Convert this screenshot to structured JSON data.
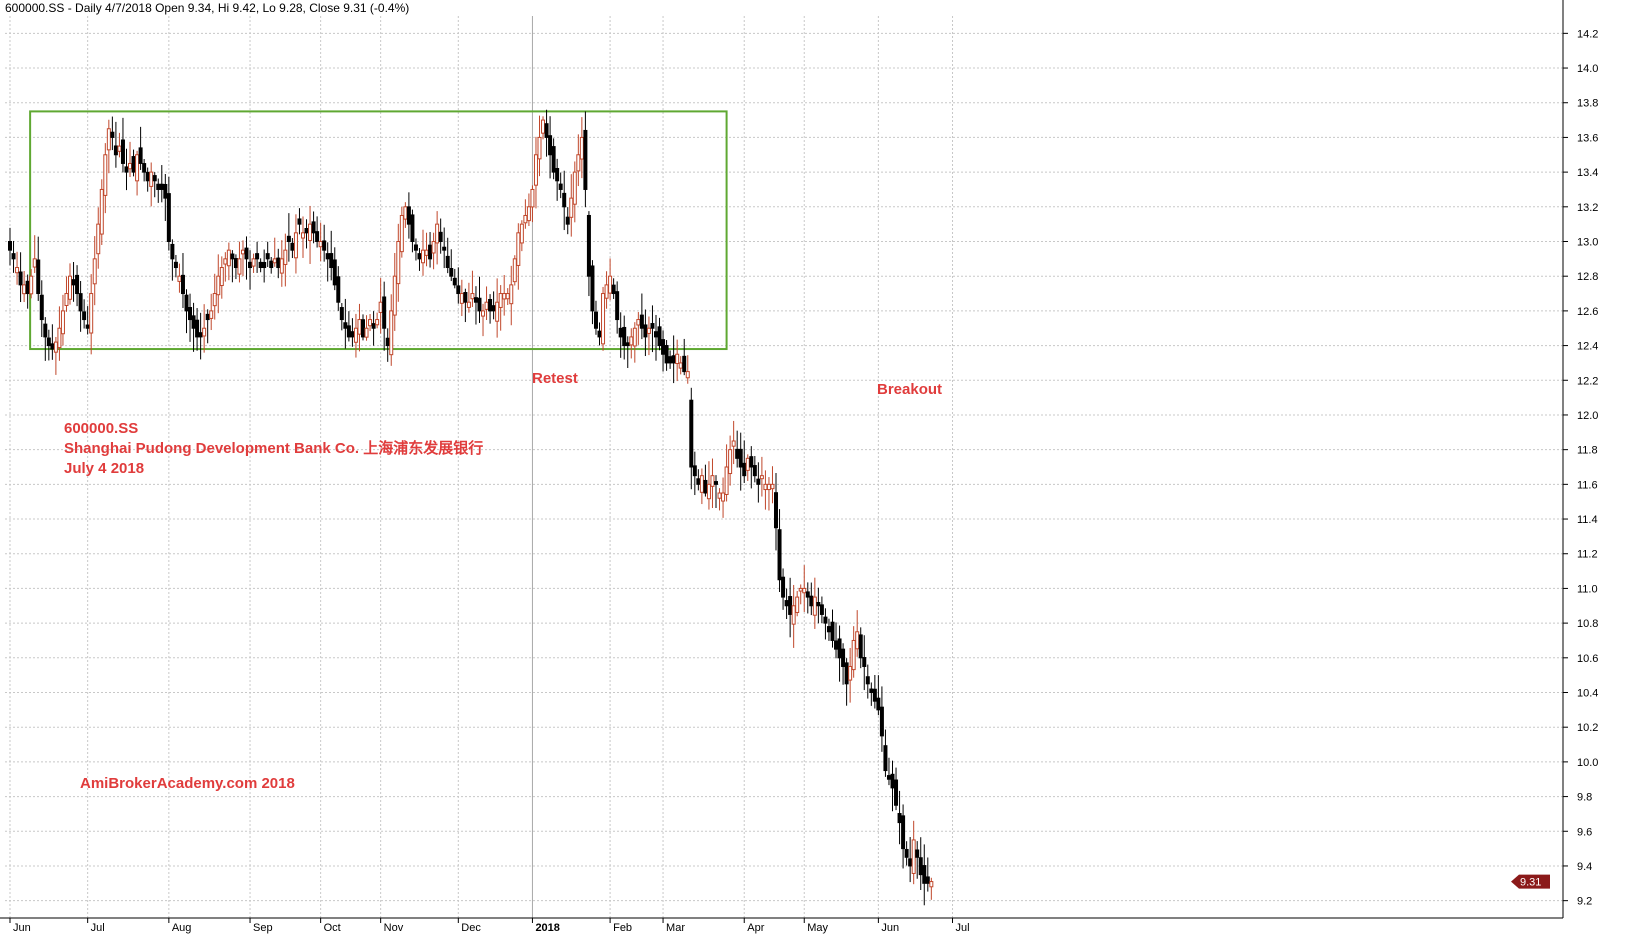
{
  "header": {
    "text": "600000.SS - Daily 4/7/2018 Open 9.34, Hi 9.42, Lo 9.28, Close 9.31 (-0.4%)"
  },
  "annotations": {
    "retest": "Retest",
    "breakout": "Breakout",
    "info_line1": "600000.SS",
    "info_line2": "Shanghai Pudong Development Bank Co. 上海浦东发展银行",
    "info_line3": "July 4 2018",
    "watermark": "AmiBrokerAcademy.com  2018"
  },
  "colors": {
    "up_candle": "#c0462a",
    "down_candle": "#000000",
    "box": "#5fa832",
    "annotation": "#e03c3c",
    "grid": "#c8c8c8",
    "price_tag": "#8b1a1a"
  },
  "chart_data": {
    "type": "candlestick",
    "symbol": "600000.SS",
    "interval": "Daily",
    "last_bar": {
      "date": "4/7/2018",
      "open": 9.34,
      "high": 9.42,
      "low": 9.28,
      "close": 9.31,
      "change": "-0.4%"
    },
    "last_price_label": "9.31",
    "y_axis": {
      "range": [
        9.1,
        14.3
      ],
      "ticks": [
        "14.2",
        "14.0",
        "13.8",
        "13.6",
        "13.4",
        "13.2",
        "13.0",
        "12.8",
        "12.6",
        "12.4",
        "12.2",
        "12.0",
        "11.8",
        "11.6",
        "11.4",
        "11.2",
        "11.0",
        "10.8",
        "10.6",
        "10.4",
        "10.2",
        "10.0",
        "9.8",
        "9.6",
        "9.4",
        "9.2"
      ]
    },
    "x_axis": {
      "months": [
        {
          "label": "Jun",
          "bar": 0,
          "bold": false
        },
        {
          "label": "Jul",
          "bar": 22,
          "bold": false
        },
        {
          "label": "Aug",
          "bar": 45,
          "bold": false
        },
        {
          "label": "Sep",
          "bar": 68,
          "bold": false
        },
        {
          "label": "Oct",
          "bar": 88,
          "bold": false
        },
        {
          "label": "Nov",
          "bar": 105,
          "bold": false
        },
        {
          "label": "Dec",
          "bar": 127,
          "bold": false
        },
        {
          "label": "2018",
          "bar": 148,
          "bold": true
        },
        {
          "label": "Feb",
          "bar": 170,
          "bold": false
        },
        {
          "label": "Mar",
          "bar": 185,
          "bold": false
        },
        {
          "label": "Apr",
          "bar": 208,
          "bold": false
        },
        {
          "label": "May",
          "bar": 225,
          "bold": false
        },
        {
          "label": "Jun",
          "bar": 246,
          "bold": false
        },
        {
          "label": "Jul",
          "bar": 267,
          "bold": false
        }
      ]
    },
    "range_box": {
      "top": 13.75,
      "bottom": 12.38,
      "start_bar": 4,
      "end_bar": 203
    },
    "closes": [
      12.95,
      12.9,
      12.85,
      12.75,
      12.75,
      12.7,
      12.8,
      12.9,
      12.7,
      12.55,
      12.45,
      12.4,
      12.38,
      12.42,
      12.5,
      12.6,
      12.7,
      12.8,
      12.75,
      12.7,
      12.6,
      12.55,
      12.5,
      12.7,
      12.9,
      13.1,
      13.3,
      13.5,
      13.65,
      13.6,
      13.5,
      13.55,
      13.45,
      13.4,
      13.45,
      13.4,
      13.5,
      13.45,
      13.4,
      13.35,
      13.4,
      13.35,
      13.3,
      13.3,
      13.25,
      13.0,
      12.9,
      12.85,
      12.8,
      12.7,
      12.6,
      12.55,
      12.5,
      12.45,
      12.45,
      12.5,
      12.55,
      12.6,
      12.7,
      12.8,
      12.85,
      12.9,
      12.95,
      12.9,
      12.85,
      12.9,
      12.95,
      12.9,
      12.85,
      12.9,
      12.9,
      12.85,
      12.85,
      12.9,
      12.85,
      12.9,
      12.85,
      12.9,
      12.95,
      13.0,
      12.95,
      13.05,
      13.1,
      13.05,
      13.05,
      13.1,
      13.05,
      13.0,
      13.0,
      12.95,
      12.9,
      12.85,
      12.75,
      12.65,
      12.55,
      12.5,
      12.45,
      12.45,
      12.5,
      12.55,
      12.45,
      12.5,
      12.55,
      12.5,
      12.55,
      12.65,
      12.5,
      12.4,
      12.6,
      12.8,
      13.0,
      13.15,
      13.2,
      13.1,
      13.0,
      12.95,
      12.9,
      12.95,
      12.95,
      12.9,
      13.0,
      13.1,
      13.0,
      12.95,
      12.85,
      12.8,
      12.75,
      12.7,
      12.7,
      12.65,
      12.65,
      12.7,
      12.65,
      12.6,
      12.6,
      12.65,
      12.6,
      12.6,
      12.65,
      12.7,
      12.7,
      12.7,
      12.75,
      12.9,
      13.05,
      13.1,
      13.15,
      13.2,
      13.3,
      13.5,
      13.6,
      13.7,
      13.6,
      13.5,
      13.4,
      13.35,
      13.3,
      13.2,
      13.1,
      13.25,
      13.4,
      13.5,
      13.6,
      13.3,
      12.8,
      12.6,
      12.5,
      12.45,
      12.7,
      12.75,
      12.8,
      12.7,
      12.55,
      12.45,
      12.4,
      12.4,
      12.45,
      12.5,
      12.55,
      12.5,
      12.45,
      12.5,
      12.5,
      12.45,
      12.4,
      12.35,
      12.3,
      12.3,
      12.3,
      12.35,
      12.3,
      12.25,
      12.25,
      11.7,
      11.65,
      11.6,
      11.65,
      11.55,
      11.6,
      11.65,
      11.6,
      11.55,
      11.55,
      11.7,
      11.8,
      11.85,
      11.75,
      11.7,
      11.65,
      11.75,
      11.7,
      11.65,
      11.6,
      11.65,
      11.6,
      11.6,
      11.6,
      11.35,
      11.05,
      10.95,
      10.9,
      10.85,
      10.9,
      10.95,
      11.0,
      11.0,
      10.95,
      10.9,
      10.95,
      10.9,
      10.85,
      10.8,
      10.75,
      10.7,
      10.65,
      10.6,
      10.55,
      10.45,
      10.55,
      10.7,
      10.75,
      10.6,
      10.55,
      10.45,
      10.4,
      10.35,
      10.3,
      10.15,
      9.95,
      9.9,
      9.85,
      9.75,
      9.65,
      9.5,
      9.45,
      9.4,
      9.55,
      9.45,
      9.35,
      9.3,
      9.3,
      9.31
    ]
  }
}
